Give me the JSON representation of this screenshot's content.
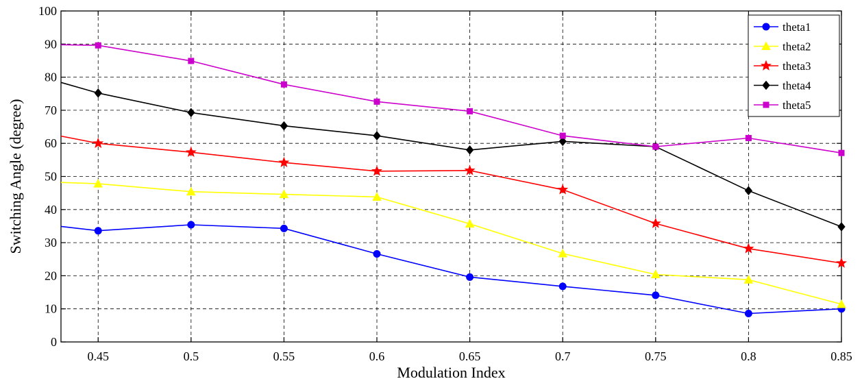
{
  "chart_data": {
    "type": "line",
    "title": "",
    "xlabel": "Modulation Index",
    "ylabel": "Switching Angle (degree)",
    "xlim": [
      0.43,
      0.85
    ],
    "ylim": [
      0,
      100
    ],
    "xticks": [
      0.45,
      0.5,
      0.55,
      0.6,
      0.65,
      0.7,
      0.75,
      0.8,
      0.85
    ],
    "xtick_labels": [
      "0.45",
      "0.5",
      "0.55",
      "0.6",
      "0.65",
      "0.7",
      "0.75",
      "0.8",
      "0.85"
    ],
    "yticks": [
      0,
      10,
      20,
      30,
      40,
      50,
      60,
      70,
      80,
      90,
      100
    ],
    "ytick_labels": [
      "0",
      "10",
      "20",
      "30",
      "40",
      "50",
      "60",
      "70",
      "80",
      "90",
      "100"
    ],
    "grid": true,
    "legend_position": "top-right",
    "x": [
      0.43,
      0.45,
      0.5,
      0.55,
      0.6,
      0.65,
      0.7,
      0.75,
      0.8,
      0.85
    ],
    "series": [
      {
        "name": "theta1",
        "color": "#0000ff",
        "marker": "circle",
        "values": [
          34.9,
          33.6,
          35.4,
          34.3,
          26.6,
          19.6,
          16.8,
          14.1,
          8.6,
          10.0
        ]
      },
      {
        "name": "theta2",
        "color": "#ffff00",
        "marker": "triangle",
        "values": [
          48.2,
          47.8,
          45.4,
          44.6,
          43.8,
          35.7,
          26.7,
          20.4,
          18.8,
          11.4
        ]
      },
      {
        "name": "theta3",
        "color": "#ff0000",
        "marker": "star",
        "values": [
          62.2,
          60.0,
          57.3,
          54.2,
          51.6,
          51.8,
          46.0,
          35.8,
          28.2,
          23.8
        ]
      },
      {
        "name": "theta4",
        "color": "#000000",
        "marker": "diamond",
        "values": [
          78.4,
          75.2,
          69.3,
          65.3,
          62.3,
          58.0,
          60.6,
          59.0,
          45.7,
          34.8
        ]
      },
      {
        "name": "theta5",
        "color": "#cc00cc",
        "marker": "square",
        "values": [
          89.8,
          89.6,
          84.9,
          77.8,
          72.6,
          69.7,
          62.3,
          59.0,
          61.6,
          57.1
        ]
      }
    ]
  }
}
